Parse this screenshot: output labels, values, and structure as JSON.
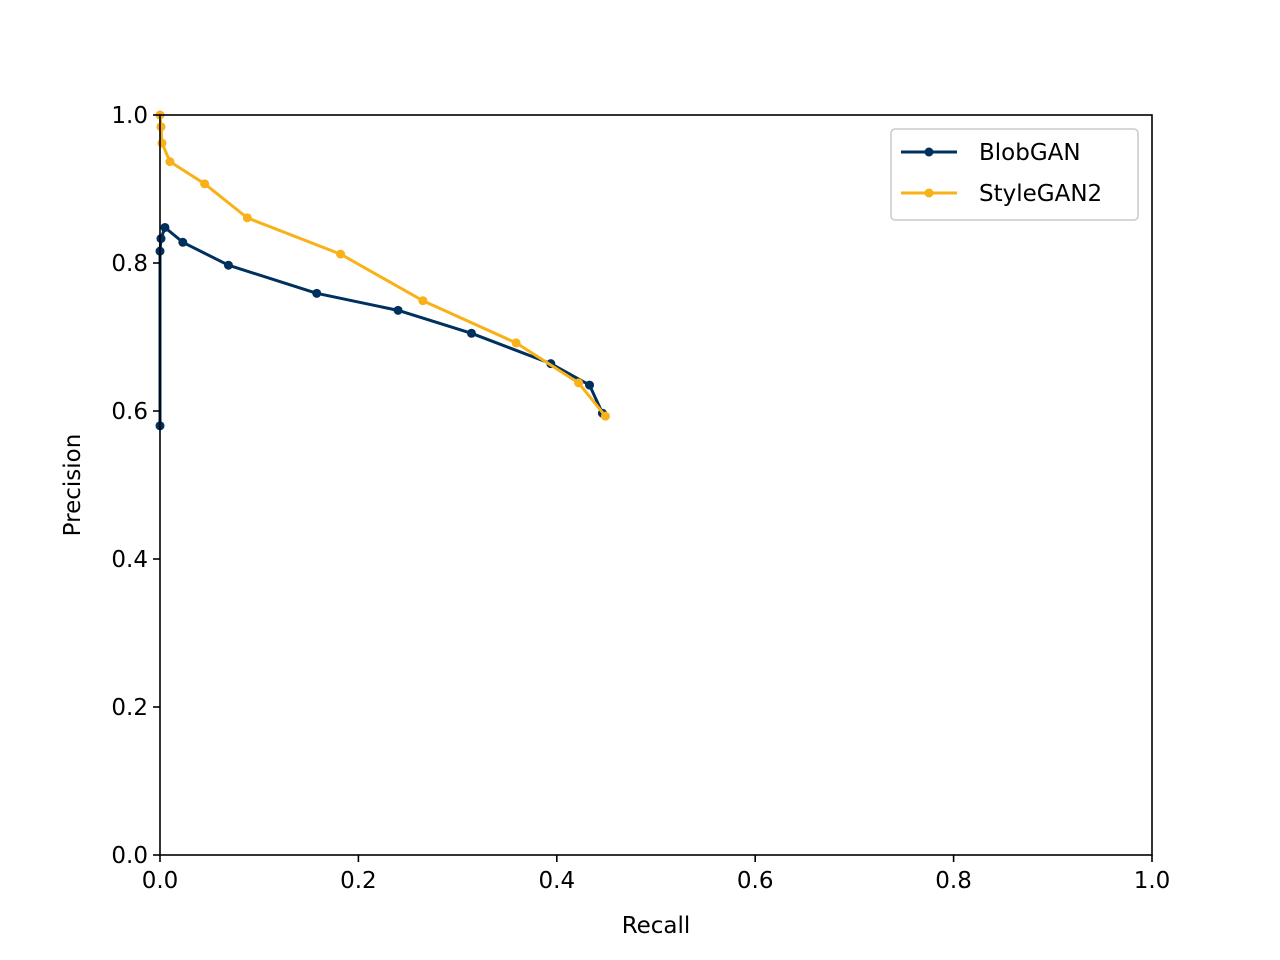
{
  "chart_data": {
    "type": "line",
    "title": "",
    "xlabel": "Recall",
    "ylabel": "Precision",
    "xlim": [
      0,
      1
    ],
    "ylim": [
      0,
      1
    ],
    "x_ticks": [
      0,
      0.2,
      0.4,
      0.6,
      0.8,
      1
    ],
    "y_ticks": [
      0,
      0.2,
      0.4,
      0.6,
      0.8,
      1
    ],
    "x_tick_labels": [
      "0.0",
      "0.2",
      "0.4",
      "0.6",
      "0.8",
      "1.0"
    ],
    "y_tick_labels": [
      "0.0",
      "0.2",
      "0.4",
      "0.6",
      "0.8",
      "1.0"
    ],
    "grid": false,
    "legend_position": "top-right",
    "series": [
      {
        "name": "BlobGAN",
        "color": "#00305e",
        "marker": "circle",
        "x": [
          0.0,
          0.0,
          0.001,
          0.005,
          0.023,
          0.069,
          0.158,
          0.24,
          0.314,
          0.394,
          0.433,
          0.446
        ],
        "y": [
          0.58,
          0.816,
          0.833,
          0.848,
          0.828,
          0.797,
          0.759,
          0.736,
          0.705,
          0.664,
          0.635,
          0.597
        ]
      },
      {
        "name": "StyleGAN2",
        "color": "#f9b118",
        "marker": "circle",
        "x": [
          0.0,
          0.001,
          0.002,
          0.01,
          0.045,
          0.088,
          0.182,
          0.265,
          0.359,
          0.422,
          0.449
        ],
        "y": [
          1.0,
          0.984,
          0.962,
          0.937,
          0.907,
          0.861,
          0.812,
          0.749,
          0.692,
          0.638,
          0.593
        ]
      }
    ]
  }
}
